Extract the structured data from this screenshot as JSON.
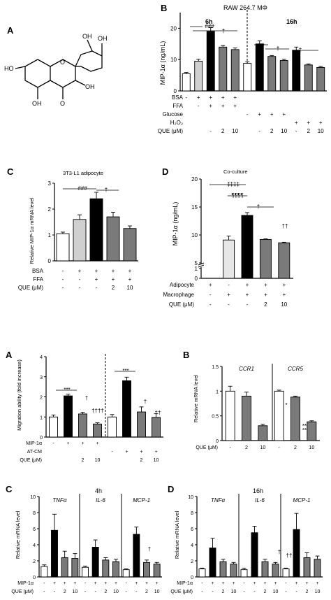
{
  "panels_top": {
    "A": {
      "letter": "A"
    },
    "B": {
      "letter": "B",
      "title": "RAW 264.7 MΦ",
      "sub1": "6h",
      "sub2": "16h",
      "ylabel": "MIP-1α (ng/mL)"
    },
    "C": {
      "letter": "C",
      "title": "3T3-L1 adipocyte",
      "ylabel": "Relative MIP-1α mRNA level"
    },
    "D": {
      "letter": "D",
      "title": "Co-culture",
      "ylabel": "MIP-1α (ng/mL)"
    }
  },
  "panels_bottom": {
    "A": {
      "letter": "A",
      "ylabel": "Migration ability (fold increase)"
    },
    "B": {
      "letter": "B",
      "ylabel": "Relative mRNA level"
    },
    "C": {
      "letter": "C",
      "title": "4h",
      "ylabel": "Relative mRNA level"
    },
    "D": {
      "letter": "D",
      "title": "16h",
      "ylabel": "Relative mRNA level"
    }
  },
  "molecule": {
    "atoms": [
      "OH",
      "OH",
      "HO",
      "OH",
      "O",
      "OH",
      "O"
    ]
  },
  "chart_data": [
    {
      "id": "B",
      "type": "bar",
      "ylim": [
        0,
        25
      ],
      "yticks": [
        0,
        10,
        20
      ],
      "values": [
        5.5,
        9.5,
        19,
        14,
        13.2,
        8.8,
        15,
        11,
        9.7,
        13,
        8.3,
        7.5
      ],
      "errors": [
        0.4,
        0.6,
        1.2,
        0.5,
        0.5,
        0.5,
        1.0,
        0.3,
        0.4,
        1.0,
        0.3,
        0.3
      ],
      "colors": [
        "#ffffff",
        "#d0d0d0",
        "#000000",
        "#7a7a7a",
        "#7a7a7a",
        "#ffffff",
        "#000000",
        "#7a7a7a",
        "#7a7a7a",
        "#000000",
        "#7a7a7a",
        "#7a7a7a"
      ],
      "rows": [
        {
          "label": "BSA",
          "marks": [
            "-",
            "+",
            "+",
            "+",
            "+",
            "",
            "",
            "",
            "",
            "",
            "",
            ""
          ]
        },
        {
          "label": "FFA",
          "marks": [
            "",
            "-",
            "+",
            "+",
            "+",
            "",
            "",
            "",
            "",
            "",
            "",
            ""
          ]
        },
        {
          "label": "Glucose",
          "marks": [
            "",
            "",
            "",
            "",
            "",
            "-",
            "+",
            "+",
            "+",
            "",
            "",
            ""
          ]
        },
        {
          "label": "H₂O₂",
          "marks": [
            "",
            "",
            "",
            "",
            "",
            "",
            "",
            "",
            "",
            "+",
            "+",
            "+"
          ]
        },
        {
          "label": "QUE (μM)",
          "marks": [
            "",
            "",
            "-",
            "2",
            "10",
            "",
            "-",
            "2",
            "10",
            "-",
            "2",
            "10"
          ]
        }
      ],
      "annotations": [
        "###",
        "†",
        "***",
        "†",
        "†"
      ]
    },
    {
      "id": "C",
      "type": "bar",
      "ylim": [
        0,
        3
      ],
      "yticks": [
        0,
        1,
        2,
        3
      ],
      "values": [
        1.05,
        1.6,
        2.4,
        1.7,
        1.25
      ],
      "errors": [
        0.06,
        0.18,
        0.25,
        0.18,
        0.1
      ],
      "colors": [
        "#ffffff",
        "#d0d0d0",
        "#000000",
        "#7a7a7a",
        "#7a7a7a"
      ],
      "rows": [
        {
          "label": "BSA",
          "marks": [
            "-",
            "+",
            "+",
            "+",
            "+"
          ]
        },
        {
          "label": "FFA",
          "marks": [
            "-",
            "-",
            "+",
            "+",
            "+"
          ]
        },
        {
          "label": "QUE (μM)",
          "marks": [
            "-",
            "-",
            "-",
            "2",
            "10"
          ]
        }
      ],
      "annotations": [
        "###",
        "†"
      ]
    },
    {
      "id": "D",
      "type": "bar",
      "ylim": [
        0,
        20
      ],
      "yticks": [
        0,
        1,
        5,
        10,
        15,
        20
      ],
      "axis_break": true,
      "values": [
        0,
        9.1,
        13.5,
        9.2,
        8.6
      ],
      "errors": [
        0,
        0.7,
        0.5,
        0.1,
        0.1
      ],
      "colors": [
        "#ffffff",
        "#e6e6e6",
        "#000000",
        "#7a7a7a",
        "#7a7a7a"
      ],
      "rows": [
        {
          "label": "Adipocyte",
          "marks": [
            "+",
            "-",
            "+",
            "+",
            "+"
          ]
        },
        {
          "label": "Macrophage",
          "marks": [
            "-",
            "+",
            "+",
            "+",
            "+"
          ]
        },
        {
          "label": "QUE (μM)",
          "marks": [
            "-",
            "-",
            "-",
            "2",
            "10"
          ]
        }
      ],
      "annotations": [
        "‡‡‡‡",
        "¶¶¶¶",
        "†",
        "††"
      ]
    },
    {
      "id": "bA",
      "type": "bar",
      "ylim": [
        0,
        4
      ],
      "yticks": [
        0,
        1,
        2,
        3,
        4
      ],
      "values": [
        1.0,
        2.05,
        1.15,
        0.65,
        1.0,
        2.8,
        1.25,
        0.98
      ],
      "errors": [
        0.1,
        0.08,
        0.08,
        0.06,
        0.12,
        0.18,
        0.25,
        0.18
      ],
      "colors": [
        "#ffffff",
        "#000000",
        "#7a7a7a",
        "#7a7a7a",
        "#ffffff",
        "#000000",
        "#7a7a7a",
        "#7a7a7a"
      ],
      "rows": [
        {
          "label": "MIP-1α",
          "marks": [
            "-",
            "+",
            "+",
            "+",
            "",
            "",
            "",
            ""
          ]
        },
        {
          "label": "AT-CM",
          "marks": [
            "",
            "",
            "",
            "",
            "-",
            "+",
            "+",
            "+"
          ]
        },
        {
          "label": "QUE (μM)",
          "marks": [
            "",
            "",
            "2",
            "10",
            "",
            "",
            "2",
            "10"
          ]
        }
      ],
      "annotations": [
        "***",
        "†",
        "††††",
        "***",
        "†",
        "††"
      ]
    },
    {
      "id": "bB",
      "type": "bar",
      "ylim": [
        0,
        1.5
      ],
      "yticks": [
        0,
        0.5,
        1.0,
        1.5
      ],
      "values": [
        1.0,
        0.9,
        0.3,
        1.0,
        0.88,
        0.38
      ],
      "errors": [
        0.1,
        0.08,
        0.03,
        0.02,
        0.02,
        0.02
      ],
      "colors": [
        "#ffffff",
        "#7a7a7a",
        "#7a7a7a",
        "#ffffff",
        "#7a7a7a",
        "#7a7a7a"
      ],
      "groups": [
        "CCR1",
        "CCR5"
      ],
      "rows": [
        {
          "label": "QUE (μM)",
          "marks": [
            "-",
            "2",
            "10",
            "-",
            "2",
            "10"
          ]
        }
      ],
      "annotations": [
        "**",
        "*",
        "**"
      ]
    },
    {
      "id": "bC",
      "type": "bar",
      "ylim": [
        0,
        10
      ],
      "yticks": [
        0,
        2,
        4,
        6,
        8,
        10
      ],
      "values": [
        1.3,
        5.8,
        2.4,
        2.3,
        1.2,
        3.7,
        2.1,
        1.9,
        0.9,
        5.3,
        1.8,
        1.6
      ],
      "errors": [
        0.2,
        2.0,
        0.8,
        0.6,
        0.15,
        0.9,
        0.3,
        0.3,
        0.1,
        0.9,
        0.3,
        0.2
      ],
      "colors": [
        "#ffffff",
        "#000000",
        "#7a7a7a",
        "#7a7a7a",
        "#ffffff",
        "#000000",
        "#7a7a7a",
        "#7a7a7a",
        "#ffffff",
        "#000000",
        "#7a7a7a",
        "#7a7a7a"
      ],
      "groups": [
        "TNFα",
        "IL-6",
        "MCP-1"
      ],
      "rows": [
        {
          "label": "MIP-1α",
          "marks": [
            "-",
            "+",
            "+",
            "+",
            "-",
            "+",
            "+",
            "+",
            "-",
            "+",
            "+",
            "+"
          ]
        },
        {
          "label": "QUE (μM)",
          "marks": [
            "-",
            "-",
            "2",
            "10",
            "-",
            "-",
            "2",
            "10",
            "-",
            "-",
            "2",
            "10"
          ]
        }
      ],
      "annotations": [
        "†"
      ]
    },
    {
      "id": "bD",
      "type": "bar",
      "ylim": [
        0,
        10
      ],
      "yticks": [
        0,
        2,
        4,
        6,
        8,
        10
      ],
      "values": [
        1.0,
        3.6,
        1.9,
        1.6,
        0.9,
        5.5,
        1.9,
        1.6,
        1.0,
        5.9,
        2.4,
        2.2
      ],
      "errors": [
        0.1,
        1.2,
        0.3,
        0.2,
        0.2,
        0.8,
        0.3,
        0.2,
        0.1,
        2.0,
        0.6,
        0.4
      ],
      "colors": [
        "#ffffff",
        "#000000",
        "#7a7a7a",
        "#7a7a7a",
        "#ffffff",
        "#000000",
        "#7a7a7a",
        "#7a7a7a",
        "#ffffff",
        "#000000",
        "#7a7a7a",
        "#7a7a7a"
      ],
      "groups": [
        "TNFα",
        "IL-6",
        "MCP-1"
      ],
      "rows": [
        {
          "label": "MIP-1α",
          "marks": [
            "-",
            "+",
            "+",
            "+",
            "-",
            "+",
            "+",
            "+",
            "-",
            "+",
            "+",
            "+"
          ]
        },
        {
          "label": "QUE (μM)",
          "marks": [
            "-",
            "-",
            "2",
            "10",
            "-",
            "-",
            "2",
            "10",
            "-",
            "-",
            "2",
            "10"
          ]
        }
      ],
      "annotations": [
        "†",
        "††"
      ]
    }
  ]
}
